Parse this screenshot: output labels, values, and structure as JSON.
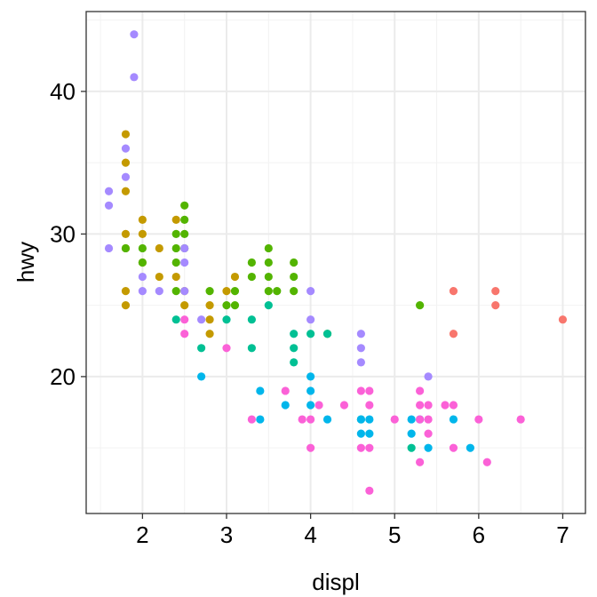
{
  "chart_data": {
    "type": "scatter",
    "title": "",
    "xlabel": "displ",
    "ylabel": "hwy",
    "xlim": [
      1.33,
      7.27
    ],
    "ylim": [
      10.4,
      45.6
    ],
    "x_ticks": [
      2,
      3,
      4,
      5,
      6,
      7
    ],
    "y_ticks": [
      20,
      30,
      40
    ],
    "x_tick_labels": [
      "2",
      "3",
      "4",
      "5",
      "6",
      "7"
    ],
    "y_tick_labels": [
      "20",
      "30",
      "40"
    ],
    "grid": true,
    "legend": "none",
    "palette": {
      "red": "#F8766D",
      "olive": "#C49A00",
      "green": "#53B400",
      "teal": "#00C094",
      "cyan": "#00B6EB",
      "purple": "#A58AFF",
      "pink": "#FB61D7"
    },
    "series": [
      {
        "color_key": "red",
        "points": [
          [
            5.7,
            26
          ],
          [
            5.7,
            23
          ],
          [
            6.2,
            26
          ],
          [
            6.2,
            25
          ],
          [
            7.0,
            24
          ]
        ]
      },
      {
        "color_key": "olive",
        "points": [
          [
            1.8,
            37
          ],
          [
            1.8,
            35
          ],
          [
            1.8,
            33
          ],
          [
            1.8,
            30
          ],
          [
            1.8,
            29
          ],
          [
            1.8,
            26
          ],
          [
            1.8,
            25
          ],
          [
            2.0,
            31
          ],
          [
            2.0,
            30
          ],
          [
            2.0,
            28
          ],
          [
            2.2,
            29
          ],
          [
            2.2,
            27
          ],
          [
            2.4,
            31
          ],
          [
            2.4,
            27
          ],
          [
            2.5,
            26
          ],
          [
            2.5,
            25
          ],
          [
            2.8,
            24
          ],
          [
            2.8,
            23
          ],
          [
            2.8,
            25
          ],
          [
            3.0,
            26
          ],
          [
            3.1,
            27
          ]
        ]
      },
      {
        "color_key": "green",
        "points": [
          [
            1.8,
            29
          ],
          [
            2.0,
            29
          ],
          [
            2.0,
            28
          ],
          [
            2.4,
            30
          ],
          [
            2.4,
            29
          ],
          [
            2.4,
            28
          ],
          [
            2.4,
            26
          ],
          [
            2.5,
            32
          ],
          [
            2.5,
            31
          ],
          [
            2.5,
            30
          ],
          [
            2.5,
            29
          ],
          [
            2.8,
            26
          ],
          [
            3.0,
            25
          ],
          [
            3.1,
            25
          ],
          [
            3.1,
            26
          ],
          [
            3.3,
            28
          ],
          [
            3.3,
            27
          ],
          [
            3.5,
            29
          ],
          [
            3.5,
            28
          ],
          [
            3.5,
            27
          ],
          [
            3.5,
            26
          ],
          [
            3.6,
            26
          ],
          [
            3.8,
            28
          ],
          [
            3.8,
            27
          ],
          [
            3.8,
            26
          ],
          [
            4.2,
            23
          ],
          [
            5.3,
            25
          ]
        ]
      },
      {
        "color_key": "teal",
        "points": [
          [
            2.4,
            24
          ],
          [
            2.7,
            22
          ],
          [
            3.0,
            24
          ],
          [
            3.3,
            24
          ],
          [
            3.3,
            22
          ],
          [
            3.5,
            25
          ],
          [
            3.8,
            23
          ],
          [
            3.8,
            22
          ],
          [
            3.8,
            21
          ],
          [
            4.0,
            23
          ],
          [
            4.2,
            23
          ],
          [
            4.6,
            17
          ],
          [
            5.2,
            15
          ]
        ]
      },
      {
        "color_key": "cyan",
        "points": [
          [
            2.7,
            20
          ],
          [
            3.4,
            19
          ],
          [
            3.4,
            17
          ],
          [
            3.7,
            18
          ],
          [
            4.0,
            20
          ],
          [
            4.0,
            19
          ],
          [
            4.0,
            18
          ],
          [
            4.2,
            17
          ],
          [
            4.6,
            17
          ],
          [
            4.6,
            16
          ],
          [
            4.7,
            17
          ],
          [
            4.7,
            16
          ],
          [
            5.2,
            17
          ],
          [
            5.2,
            16
          ],
          [
            5.3,
            17
          ],
          [
            5.4,
            15
          ],
          [
            5.7,
            17
          ],
          [
            5.9,
            15
          ]
        ]
      },
      {
        "color_key": "purple",
        "points": [
          [
            1.6,
            33
          ],
          [
            1.6,
            32
          ],
          [
            1.6,
            29
          ],
          [
            1.8,
            36
          ],
          [
            1.8,
            34
          ],
          [
            1.9,
            44
          ],
          [
            1.9,
            41
          ],
          [
            2.0,
            27
          ],
          [
            2.0,
            26
          ],
          [
            2.2,
            26
          ],
          [
            2.5,
            29
          ],
          [
            2.5,
            28
          ],
          [
            2.5,
            26
          ],
          [
            2.7,
            24
          ],
          [
            4.0,
            26
          ],
          [
            4.0,
            24
          ],
          [
            4.6,
            23
          ],
          [
            4.6,
            22
          ],
          [
            4.6,
            21
          ],
          [
            5.4,
            20
          ]
        ]
      },
      {
        "color_key": "pink",
        "points": [
          [
            2.5,
            24
          ],
          [
            2.5,
            23
          ],
          [
            3.0,
            22
          ],
          [
            3.3,
            17
          ],
          [
            3.7,
            19
          ],
          [
            3.9,
            17
          ],
          [
            4.0,
            17
          ],
          [
            4.0,
            15
          ],
          [
            4.1,
            18
          ],
          [
            4.4,
            18
          ],
          [
            4.6,
            19
          ],
          [
            4.6,
            15
          ],
          [
            4.7,
            19
          ],
          [
            4.7,
            18
          ],
          [
            4.7,
            15
          ],
          [
            4.7,
            12
          ],
          [
            5.0,
            17
          ],
          [
            5.3,
            19
          ],
          [
            5.3,
            18
          ],
          [
            5.3,
            17
          ],
          [
            5.3,
            14
          ],
          [
            5.4,
            18
          ],
          [
            5.4,
            17
          ],
          [
            5.4,
            16
          ],
          [
            5.6,
            18
          ],
          [
            5.7,
            18
          ],
          [
            5.7,
            15
          ],
          [
            6.0,
            17
          ],
          [
            6.1,
            14
          ],
          [
            6.5,
            17
          ]
        ]
      }
    ]
  }
}
